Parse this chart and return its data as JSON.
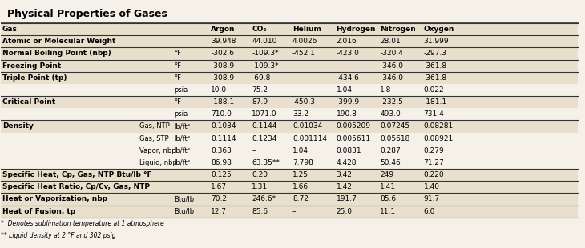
{
  "title": "Physical Properties of Gases",
  "columns": [
    "Gas",
    "",
    "",
    "Argon",
    "CO₂",
    "Helium",
    "Hydrogen",
    "Nitrogen",
    "Oxygen"
  ],
  "col_headers": [
    "Argon",
    "CO₂",
    "Helium",
    "Hydrogen",
    "Nitrogen",
    "Oxygen"
  ],
  "rows": [
    {
      "label": "Gas",
      "sub1": "",
      "sub2": "",
      "values": [
        "Argon",
        "CO₂",
        "Helium",
        "Hydrogen",
        "Nitrogen",
        "Oxygen"
      ],
      "bold": true,
      "top_border": true
    },
    {
      "label": "Atomic or Molecular Weight",
      "sub1": "",
      "sub2": "",
      "values": [
        "39.948",
        "44.010",
        "4.0026",
        "2.016",
        "28.01",
        "31.999"
      ],
      "bold": true,
      "top_border": true
    },
    {
      "label": "Normal Boiling Point (nbp)",
      "sub1": "",
      "sub2": "°F",
      "values": [
        "-302.6",
        "-109.3*",
        "-452.1",
        "-423.0",
        "-320.4",
        "-297.3"
      ],
      "bold": true,
      "top_border": true
    },
    {
      "label": "Freezing Point",
      "sub1": "",
      "sub2": "°F",
      "values": [
        "-308.9",
        "-109.3*",
        "–",
        "–",
        "-346.0",
        "-361.8"
      ],
      "bold": true,
      "top_border": true
    },
    {
      "label": "Triple Point (tp)",
      "sub1": "",
      "sub2": "°F",
      "values": [
        "-308.9",
        "-69.8",
        "–",
        "-434.6",
        "-346.0",
        "-361.8"
      ],
      "bold": true,
      "top_border": true
    },
    {
      "label": "",
      "sub1": "",
      "sub2": "psia",
      "values": [
        "10.0",
        "75.2",
        "–",
        "1.04",
        "1.8",
        "0.022"
      ],
      "bold": false,
      "top_border": false
    },
    {
      "label": "Critical Point",
      "sub1": "",
      "sub2": "°F",
      "values": [
        "-188.1",
        "87.9",
        "-450.3",
        "-399.9",
        "-232.5",
        "-181.1"
      ],
      "bold": true,
      "top_border": true
    },
    {
      "label": "",
      "sub1": "",
      "sub2": "psia",
      "values": [
        "710.0",
        "1071.0",
        "33.2",
        "190.8",
        "493.0",
        "731.4"
      ],
      "bold": false,
      "top_border": false
    },
    {
      "label": "Density",
      "sub1": "Gas, NTP",
      "sub2": "lb/ft³",
      "values": [
        "0.1034",
        "0.1144",
        "0.01034",
        "0.005209",
        "0.07245",
        "0.08281"
      ],
      "bold": true,
      "top_border": true
    },
    {
      "label": "",
      "sub1": "Gas, STP",
      "sub2": "lb/ft³",
      "values": [
        "0.1114",
        "0.1234",
        "0.001114",
        "0.005611",
        "0.05618",
        "0.08921"
      ],
      "bold": false,
      "top_border": false
    },
    {
      "label": "",
      "sub1": "Vapor, nbp",
      "sub2": "lb/ft³",
      "values": [
        "0.363",
        "–",
        "1.04",
        "0.0831",
        "0.287",
        "0.279"
      ],
      "bold": false,
      "top_border": false
    },
    {
      "label": "",
      "sub1": "Liquid, nbp",
      "sub2": "lb/ft³",
      "values": [
        "86.98",
        "63.35**",
        "7.798",
        "4.428",
        "50.46",
        "71.27"
      ],
      "bold": false,
      "top_border": false
    },
    {
      "label": "Specific Heat, Cp, Gas, NTP Btu/lb °F",
      "sub1": "",
      "sub2": "",
      "values": [
        "0.125",
        "0.20",
        "1.25",
        "3.42",
        "249",
        "0.220"
      ],
      "bold": true,
      "top_border": true
    },
    {
      "label": "Specific Heat Ratio, Cp/Cv, Gas, NTP",
      "sub1": "",
      "sub2": "",
      "values": [
        "1.67",
        "1.31",
        "1.66",
        "1.42",
        "1.41",
        "1.40"
      ],
      "bold": true,
      "top_border": true
    },
    {
      "label": "Heat or Vaporization, nbp",
      "sub1": "",
      "sub2": "Btu/lb",
      "values": [
        "70.2",
        "246.6*",
        "8.72",
        "191.7",
        "85.6",
        "91.7"
      ],
      "bold": true,
      "top_border": true
    },
    {
      "label": "Heat of Fusion, tp",
      "sub1": "",
      "sub2": "Btu/lb",
      "values": [
        "12.7",
        "85.6",
        "–",
        "25.0",
        "11.1",
        "6.0"
      ],
      "bold": true,
      "top_border": true
    }
  ],
  "footnotes": [
    "*  Denotes sublimation temperature at 1 atmosphere",
    "** Liquid density at 2 °F and 302 psig"
  ],
  "bg_color": "#f5f0e8",
  "header_bg": "#d4c9a8",
  "border_color": "#333333",
  "bold_row_bg": "#e8e0cc",
  "normal_row_bg": "#f5f0e8"
}
